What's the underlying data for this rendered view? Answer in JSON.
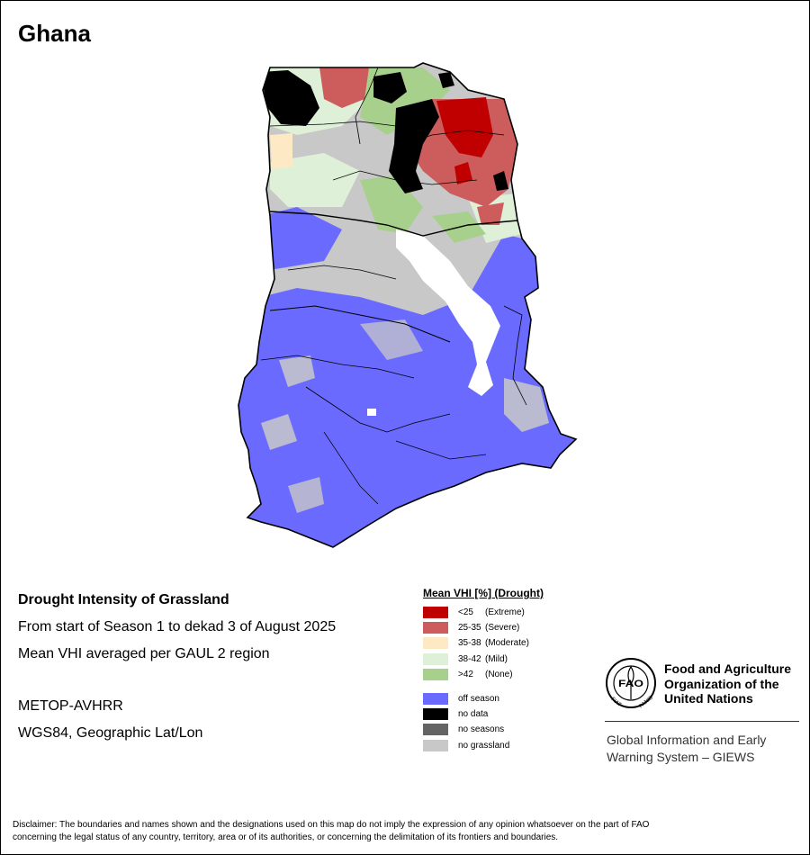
{
  "map_title": "Ghana",
  "info": {
    "heading": "Drought Intensity of Grassland",
    "period": "From start of Season 1 to dekad 3 of August 2025",
    "method": "Mean VHI averaged per GAUL 2 region",
    "sensor": "METOP-AVHRR",
    "projection": "WGS84, Geographic Lat/Lon"
  },
  "legend": {
    "title": "Mean VHI [%] (Drought)",
    "classes": [
      {
        "range": "<25",
        "label": "(Extreme)",
        "color": "#c00000"
      },
      {
        "range": "25-35",
        "label": "(Severe)",
        "color": "#cd5c5c"
      },
      {
        "range": "35-38",
        "label": "(Moderate)",
        "color": "#fde9c4"
      },
      {
        "range": "38-42",
        "label": "(Mild)",
        "color": "#dff0d8"
      },
      {
        "range": ">42",
        "label": "(None)",
        "color": "#a8d08d"
      }
    ],
    "other": [
      {
        "label": "off season",
        "color": "#6a6aff"
      },
      {
        "label": "no data",
        "color": "#000000"
      },
      {
        "label": "no seasons",
        "color": "#646464"
      },
      {
        "label": "no grassland",
        "color": "#c8c8c8"
      }
    ]
  },
  "logo": {
    "letters": "FAO",
    "ring_left": "FIAT",
    "ring_right": "PANIS",
    "org_line1": "Food and Agriculture",
    "org_line2": "Organization of the",
    "org_line3": "United Nations",
    "giews_line1": "Global Information and Early",
    "giews_line2": "Warning System – GIEWS"
  },
  "disclaimer_line1": "Disclaimer: The boundaries and names shown and the designations used on this map do not imply the expression of any opinion whatsoever on the part of FAO",
  "disclaimer_line2": "concerning the legal status of any country, territory, area or of its authorities, or concerning the delimitation of its frontiers and boundaries."
}
